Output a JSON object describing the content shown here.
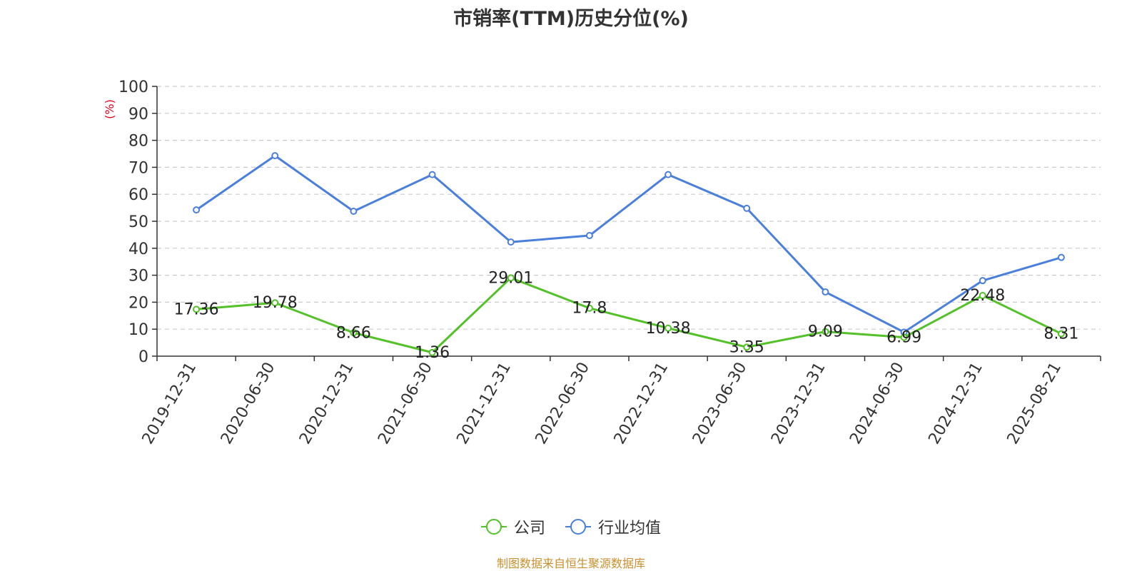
{
  "colors": {
    "series_0": "#55c12a",
    "series_1": "#4a7fdc",
    "axis_unit": "#e0001b",
    "source": "#c8902f"
  },
  "chart_data": {
    "type": "line",
    "title": "市销率(TTM)历史分位(%)",
    "ylabel": "(%)",
    "ylim": [
      0,
      100
    ],
    "yticks": [
      0,
      10,
      20,
      30,
      40,
      50,
      60,
      70,
      80,
      90,
      100
    ],
    "grid": "horizontal-dashed",
    "legend_position": "bottom-center",
    "categories": [
      "2019-12-31",
      "2020-06-30",
      "2020-12-31",
      "2021-06-30",
      "2021-12-31",
      "2022-06-30",
      "2022-12-31",
      "2023-06-30",
      "2023-12-31",
      "2024-06-30",
      "2024-12-31",
      "2025-08-21"
    ],
    "series": [
      {
        "name": "公司",
        "values": [
          17.36,
          19.78,
          8.66,
          1.36,
          29.01,
          17.8,
          10.38,
          3.35,
          9.09,
          6.99,
          22.48,
          8.31
        ],
        "labels": [
          "17.36",
          "19.78",
          "8.66",
          "1.36",
          "29.01",
          "17.8",
          "10.38",
          "3.35",
          "9.09",
          "6.99",
          "22.48",
          "8.31"
        ]
      },
      {
        "name": "行业均值",
        "values": [
          54.2,
          74.3,
          53.7,
          67.3,
          42.3,
          44.7,
          67.3,
          54.8,
          23.8,
          8.9,
          28.0,
          36.6
        ]
      }
    ]
  },
  "source_note": "制图数据来自恒生聚源数据库"
}
